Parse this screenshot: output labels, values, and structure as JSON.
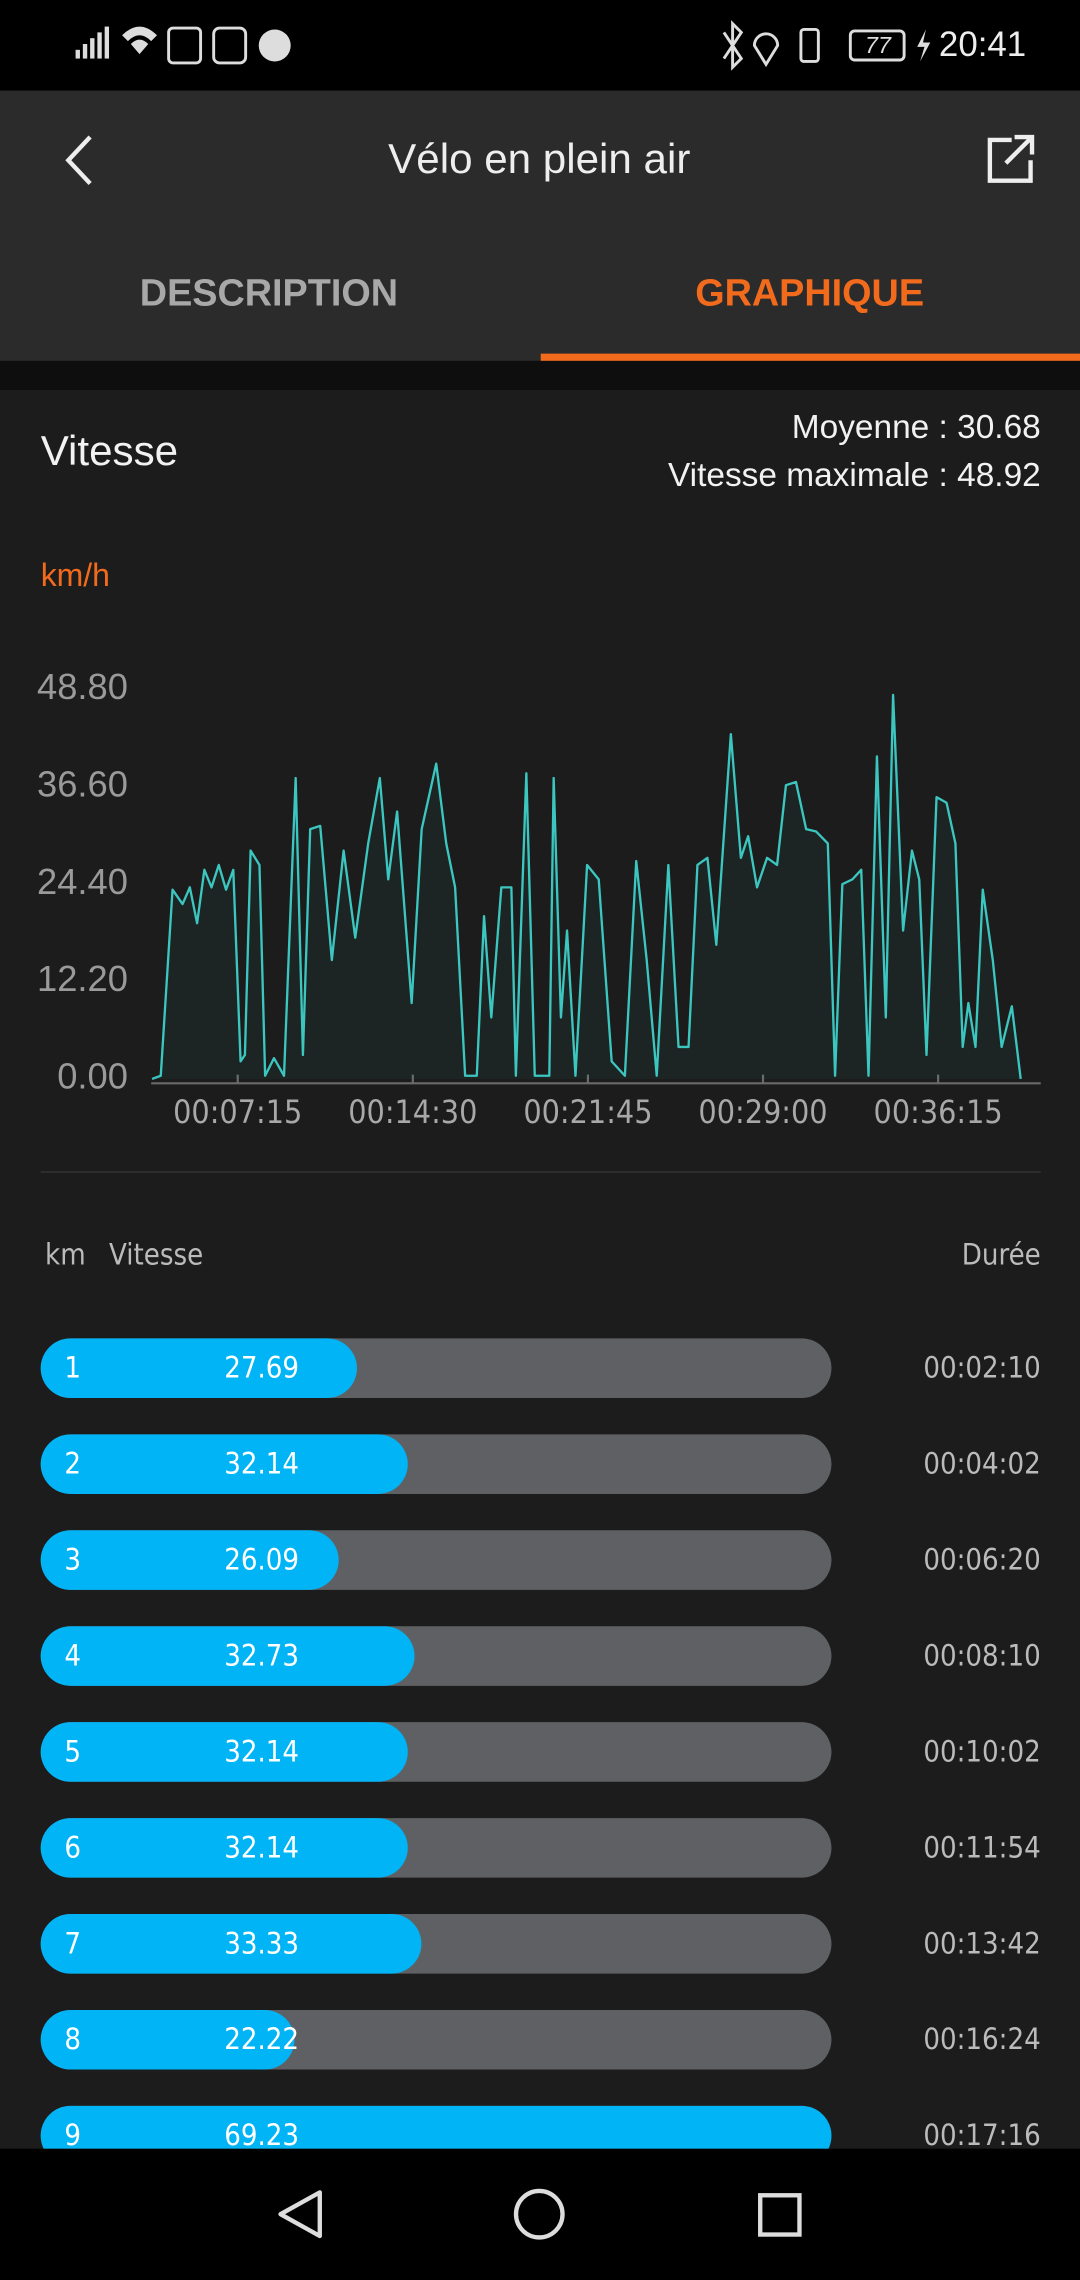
{
  "status_bar": {
    "time": "20:41",
    "battery": "77"
  },
  "header": {
    "title": "Vélo en plein air"
  },
  "tabs": [
    "DESCRIPTION",
    "GRAPHIQUE"
  ],
  "speed": {
    "title": "Vitesse",
    "average": "Moyenne : 30.68",
    "max": "Vitesse maximale : 48.92"
  },
  "chart_data": {
    "type": "line",
    "y_label": "km/h",
    "color": "#3cc6c0",
    "x": [
      222,
      244,
      273,
      298,
      316,
      334,
      352,
      370,
      388,
      406,
      424,
      442,
      453,
      467,
      489,
      503,
      525,
      550,
      579,
      597,
      615,
      640,
      669,
      698,
      727,
      759,
      788,
      809,
      831,
      867,
      892,
      928,
      953,
      975,
      1000,
      1029,
      1047,
      1065,
      1090,
      1115,
      1126,
      1152,
      1173,
      1209,
      1220,
      1238,
      1253,
      1274,
      1303,
      1332,
      1364,
      1397,
      1425,
      1451,
      1476,
      1505,
      1530,
      1555,
      1577,
      1602,
      1624,
      1660,
      1685,
      1703,
      1725,
      1750,
      1775,
      1797,
      1822,
      1847,
      1872,
      1901,
      1919,
      1937,
      1962,
      1984,
      2002,
      2023,
      2045,
      2063,
      2088,
      2110,
      2128,
      2146,
      2171,
      2196,
      2218,
      2236,
      2250,
      2268,
      2286,
      2311,
      2333,
      2358,
      2380
    ],
    "values": [
      0,
      0.4,
      23.7,
      21.9,
      24,
      19.5,
      26.2,
      24,
      26.8,
      23.7,
      26.2,
      2.2,
      3,
      28.6,
      26.8,
      0.4,
      2.6,
      0.4,
      37.7,
      3,
      31.3,
      31.7,
      14.9,
      28.6,
      17.7,
      29.5,
      37.7,
      25,
      33.5,
      9.5,
      31.3,
      39.5,
      29.5,
      24,
      0.4,
      0.4,
      20.4,
      7.7,
      24,
      24,
      0.4,
      38.3,
      0.4,
      0.4,
      37.7,
      7.7,
      18.6,
      0.4,
      26.8,
      25,
      2.2,
      0.4,
      27.3,
      14.9,
      0.4,
      26.8,
      4,
      4,
      26.8,
      27.7,
      16.8,
      43.2,
      27.7,
      30.4,
      24,
      27.7,
      26.8,
      36.8,
      37.2,
      31.3,
      31,
      29.5,
      0.4,
      24.4,
      25,
      26.2,
      0.4,
      40.4,
      7.7,
      48.1,
      18.6,
      28.6,
      25,
      3,
      35.3,
      34.6,
      29.5,
      4,
      9.5,
      4,
      23.7,
      14.9,
      4,
      9.1,
      0
    ],
    "xlim": [
      220,
      2430
    ],
    "ylim": [
      0,
      48.8
    ],
    "yticks": [
      {
        "value": 0,
        "label": "0.00"
      },
      {
        "value": 12.2,
        "label": "12.20"
      },
      {
        "value": 24.4,
        "label": "24.40"
      },
      {
        "value": 36.6,
        "label": "36.60"
      },
      {
        "value": 48.8,
        "label": "48.80"
      }
    ],
    "xticks": [
      {
        "value": 435,
        "label": "00:07:15"
      },
      {
        "value": 870,
        "label": "00:14:30"
      },
      {
        "value": 1305,
        "label": "00:21:45"
      },
      {
        "value": 1740,
        "label": "00:29:00"
      },
      {
        "value": 2175,
        "label": "00:36:15"
      }
    ]
  },
  "splits": {
    "columns": [
      "km",
      "Vitesse",
      "Durée"
    ],
    "rows": [
      {
        "km": 1,
        "speed": 27.69,
        "duration": "00:02:10"
      },
      {
        "km": 2,
        "speed": 32.14,
        "duration": "00:04:02"
      },
      {
        "km": 3,
        "speed": 26.09,
        "duration": "00:06:20"
      },
      {
        "km": 4,
        "speed": 32.73,
        "duration": "00:08:10"
      },
      {
        "km": 5,
        "speed": 32.14,
        "duration": "00:10:02"
      },
      {
        "km": 6,
        "speed": 32.14,
        "duration": "00:11:54"
      },
      {
        "km": 7,
        "speed": 33.33,
        "duration": "00:13:42"
      },
      {
        "km": 8,
        "speed": 22.22,
        "duration": "00:16:24"
      },
      {
        "km": 9,
        "speed": 69.23,
        "duration": "00:17:16"
      }
    ]
  }
}
